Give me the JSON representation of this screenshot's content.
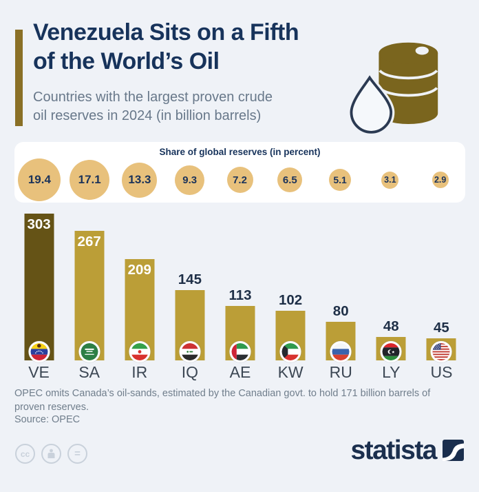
{
  "header": {
    "title_line1": "Venezuela Sits on a Fifth",
    "title_line2": "of the World’s Oil",
    "subtitle_line1": "Countries with the largest proven crude",
    "subtitle_line2": "oil reserves in 2024 (in billion barrels)",
    "icons": [
      "oil-barrel-icon",
      "water-drop-icon"
    ]
  },
  "share_band": {
    "title": "Share of global reserves (in percent)"
  },
  "chart_data": {
    "type": "bar",
    "title": "Venezuela Sits on a Fifth of the World’s Oil",
    "subtitle": "Countries with the largest proven crude oil reserves in 2024 (in billion barrels)",
    "categories": [
      "VE",
      "SA",
      "IR",
      "IQ",
      "AE",
      "KW",
      "RU",
      "LY",
      "US"
    ],
    "series": [
      {
        "name": "Proven crude oil reserves (billion barrels)",
        "values": [
          303,
          267,
          209,
          145,
          113,
          102,
          80,
          48,
          45
        ]
      },
      {
        "name": "Share of global reserves (percent)",
        "values": [
          19.4,
          17.1,
          13.3,
          9.3,
          7.2,
          6.5,
          5.1,
          3.1,
          2.9
        ]
      }
    ],
    "highlight_category": "VE",
    "ylim": [
      0,
      320
    ],
    "grid": false,
    "legend": false,
    "colors": {
      "highlight_bar": "#655316",
      "bar": "#bb9e37",
      "share_circle": "#e8c17c",
      "accent": "#8a7026",
      "title_navy": "#17335b",
      "subtitle_gray": "#68788a"
    },
    "flag_icons": [
      "flag-ve-icon",
      "flag-sa-icon",
      "flag-ir-icon",
      "flag-iq-icon",
      "flag-ae-icon",
      "flag-kw-icon",
      "flag-ru-icon",
      "flag-ly-icon",
      "flag-us-icon"
    ]
  },
  "footer": {
    "note_line1": "OPEC omits Canada’s oil-sands, estimated by the Canadian govt. to hold 171 billion barrels of",
    "note_line2": "proven reserves.",
    "source": "Source: OPEC"
  },
  "branding": {
    "logo_text": "statista",
    "logo_mark_icon": "statista-mark-icon",
    "license_icons": [
      "cc-icon",
      "attribution-person-icon",
      "equals-icon"
    ],
    "cc_label": "cc",
    "equals_label": "="
  }
}
